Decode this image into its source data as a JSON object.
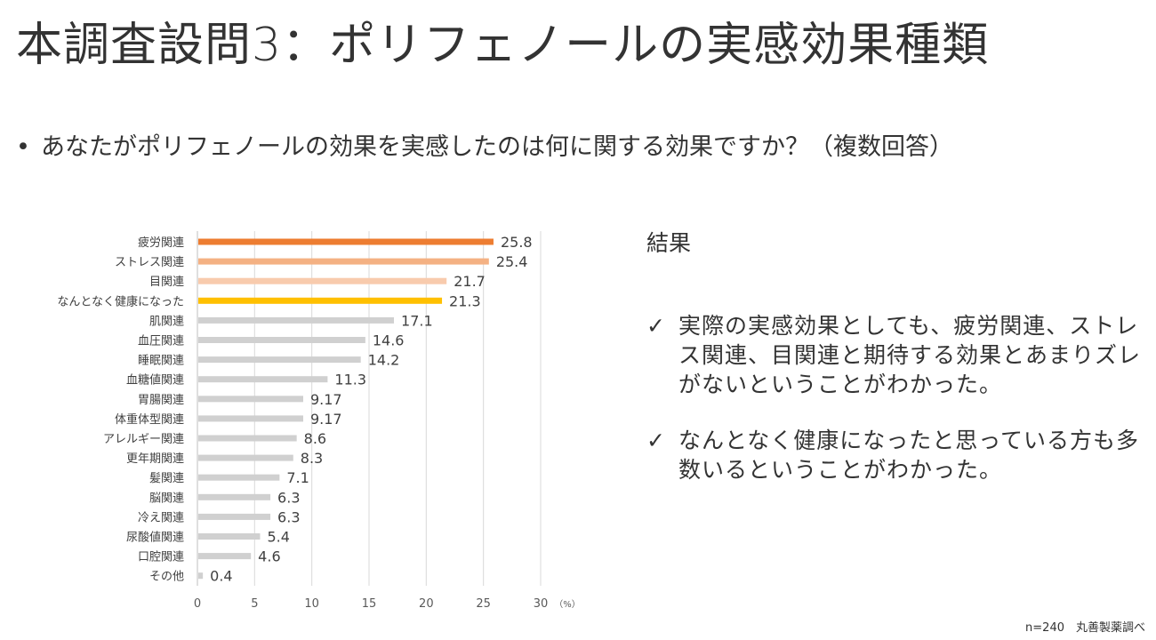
{
  "title": "本調査設問3：ポリフェノールの実感効果種類",
  "question": {
    "bullet_icon": "bullet-dot",
    "text": "あなたがポリフェノールの効果を実感したのは何に関する効果ですか？（複数回答）"
  },
  "result": {
    "heading": "結果",
    "check_icon": "✓",
    "findings": [
      "実際の実感効果としても、疲労関連、ストレス関連、目関連と期待する効果とあまりズレがないということがわかった。",
      "なんとなく健康になったと思っている方も多数いるということがわかった。"
    ]
  },
  "source_note": "n=240　丸善製薬調べ",
  "chart_data": {
    "type": "bar",
    "orientation": "horizontal",
    "categories": [
      "疲労関連",
      "ストレス関連",
      "目関連",
      "なんとなく健康になった",
      "肌関連",
      "血圧関連",
      "睡眠関連",
      "血糖値関連",
      "胃腸関連",
      "体重体型関連",
      "アレルギー関連",
      "更年期関連",
      "髪関連",
      "脳関連",
      "冷え関連",
      "尿酸値関連",
      "口腔関連",
      "その他"
    ],
    "values": [
      25.8,
      25.4,
      21.7,
      21.3,
      17.1,
      14.6,
      14.2,
      11.3,
      9.17,
      9.17,
      8.6,
      8.3,
      7.1,
      6.3,
      6.3,
      5.4,
      4.6,
      0.4
    ],
    "value_labels": [
      "25.8",
      "25.4",
      "21.7",
      "21.3",
      "17.1",
      "14.6",
      "14.2",
      "11.3",
      "9.17",
      "9.17",
      "8.6",
      "8.3",
      "7.1",
      "6.3",
      "6.3",
      "5.4",
      "4.6",
      "0.4"
    ],
    "bar_colors": [
      "#ED7D31",
      "#F4B183",
      "#F8CBAD",
      "#FFC000",
      "#D0D0D0",
      "#D0D0D0",
      "#D0D0D0",
      "#D0D0D0",
      "#D0D0D0",
      "#D0D0D0",
      "#D0D0D0",
      "#D0D0D0",
      "#D0D0D0",
      "#D0D0D0",
      "#D0D0D0",
      "#D0D0D0",
      "#D0D0D0",
      "#D0D0D0"
    ],
    "xlim": [
      0,
      30
    ],
    "xticks": [
      0,
      5,
      10,
      15,
      20,
      25,
      30
    ],
    "xlabel": "（%）",
    "grid": true,
    "legend": "none"
  }
}
